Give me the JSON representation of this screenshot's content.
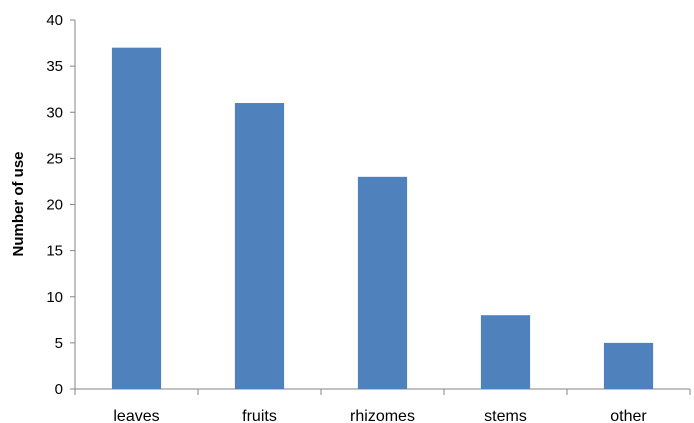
{
  "chart_data": {
    "type": "bar",
    "title": "",
    "xlabel": "",
    "ylabel": "Number of use",
    "categories": [
      "leaves",
      "fruits",
      "rhizomes",
      "stems",
      "other"
    ],
    "values": [
      37,
      31,
      23,
      8,
      5
    ],
    "ylim": [
      0,
      40
    ],
    "yticks": [
      0,
      5,
      10,
      15,
      20,
      25,
      30,
      35,
      40
    ],
    "grid": false,
    "legend": "none",
    "colors": {
      "bar": "#4f81bd",
      "axis": "#868686"
    }
  }
}
